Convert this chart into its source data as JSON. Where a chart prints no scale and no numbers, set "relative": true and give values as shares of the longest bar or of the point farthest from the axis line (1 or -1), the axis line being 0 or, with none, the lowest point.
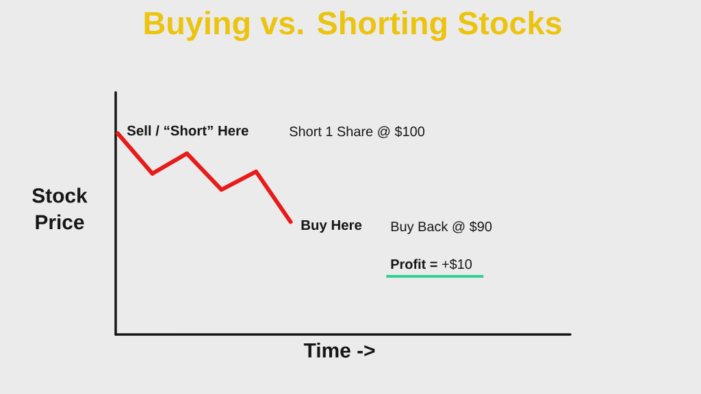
{
  "chart_data": {
    "type": "line",
    "title": "Buying vs. Shorting Stocks",
    "xlabel": "Time ->",
    "ylabel": "Stock Price",
    "categories": [
      null,
      null,
      null,
      null,
      null,
      null
    ],
    "values": [
      1,
      0.8,
      0.9,
      0.72,
      0.81,
      0.56
    ],
    "color": "#e81b1b",
    "relative": true,
    "annotations": [
      "Sell / “Short” Here",
      "Buy Here",
      "Short 1 Share @ $100",
      "Buy Back @ $90",
      "**Profit =** +$10"
    ]
  }
}
